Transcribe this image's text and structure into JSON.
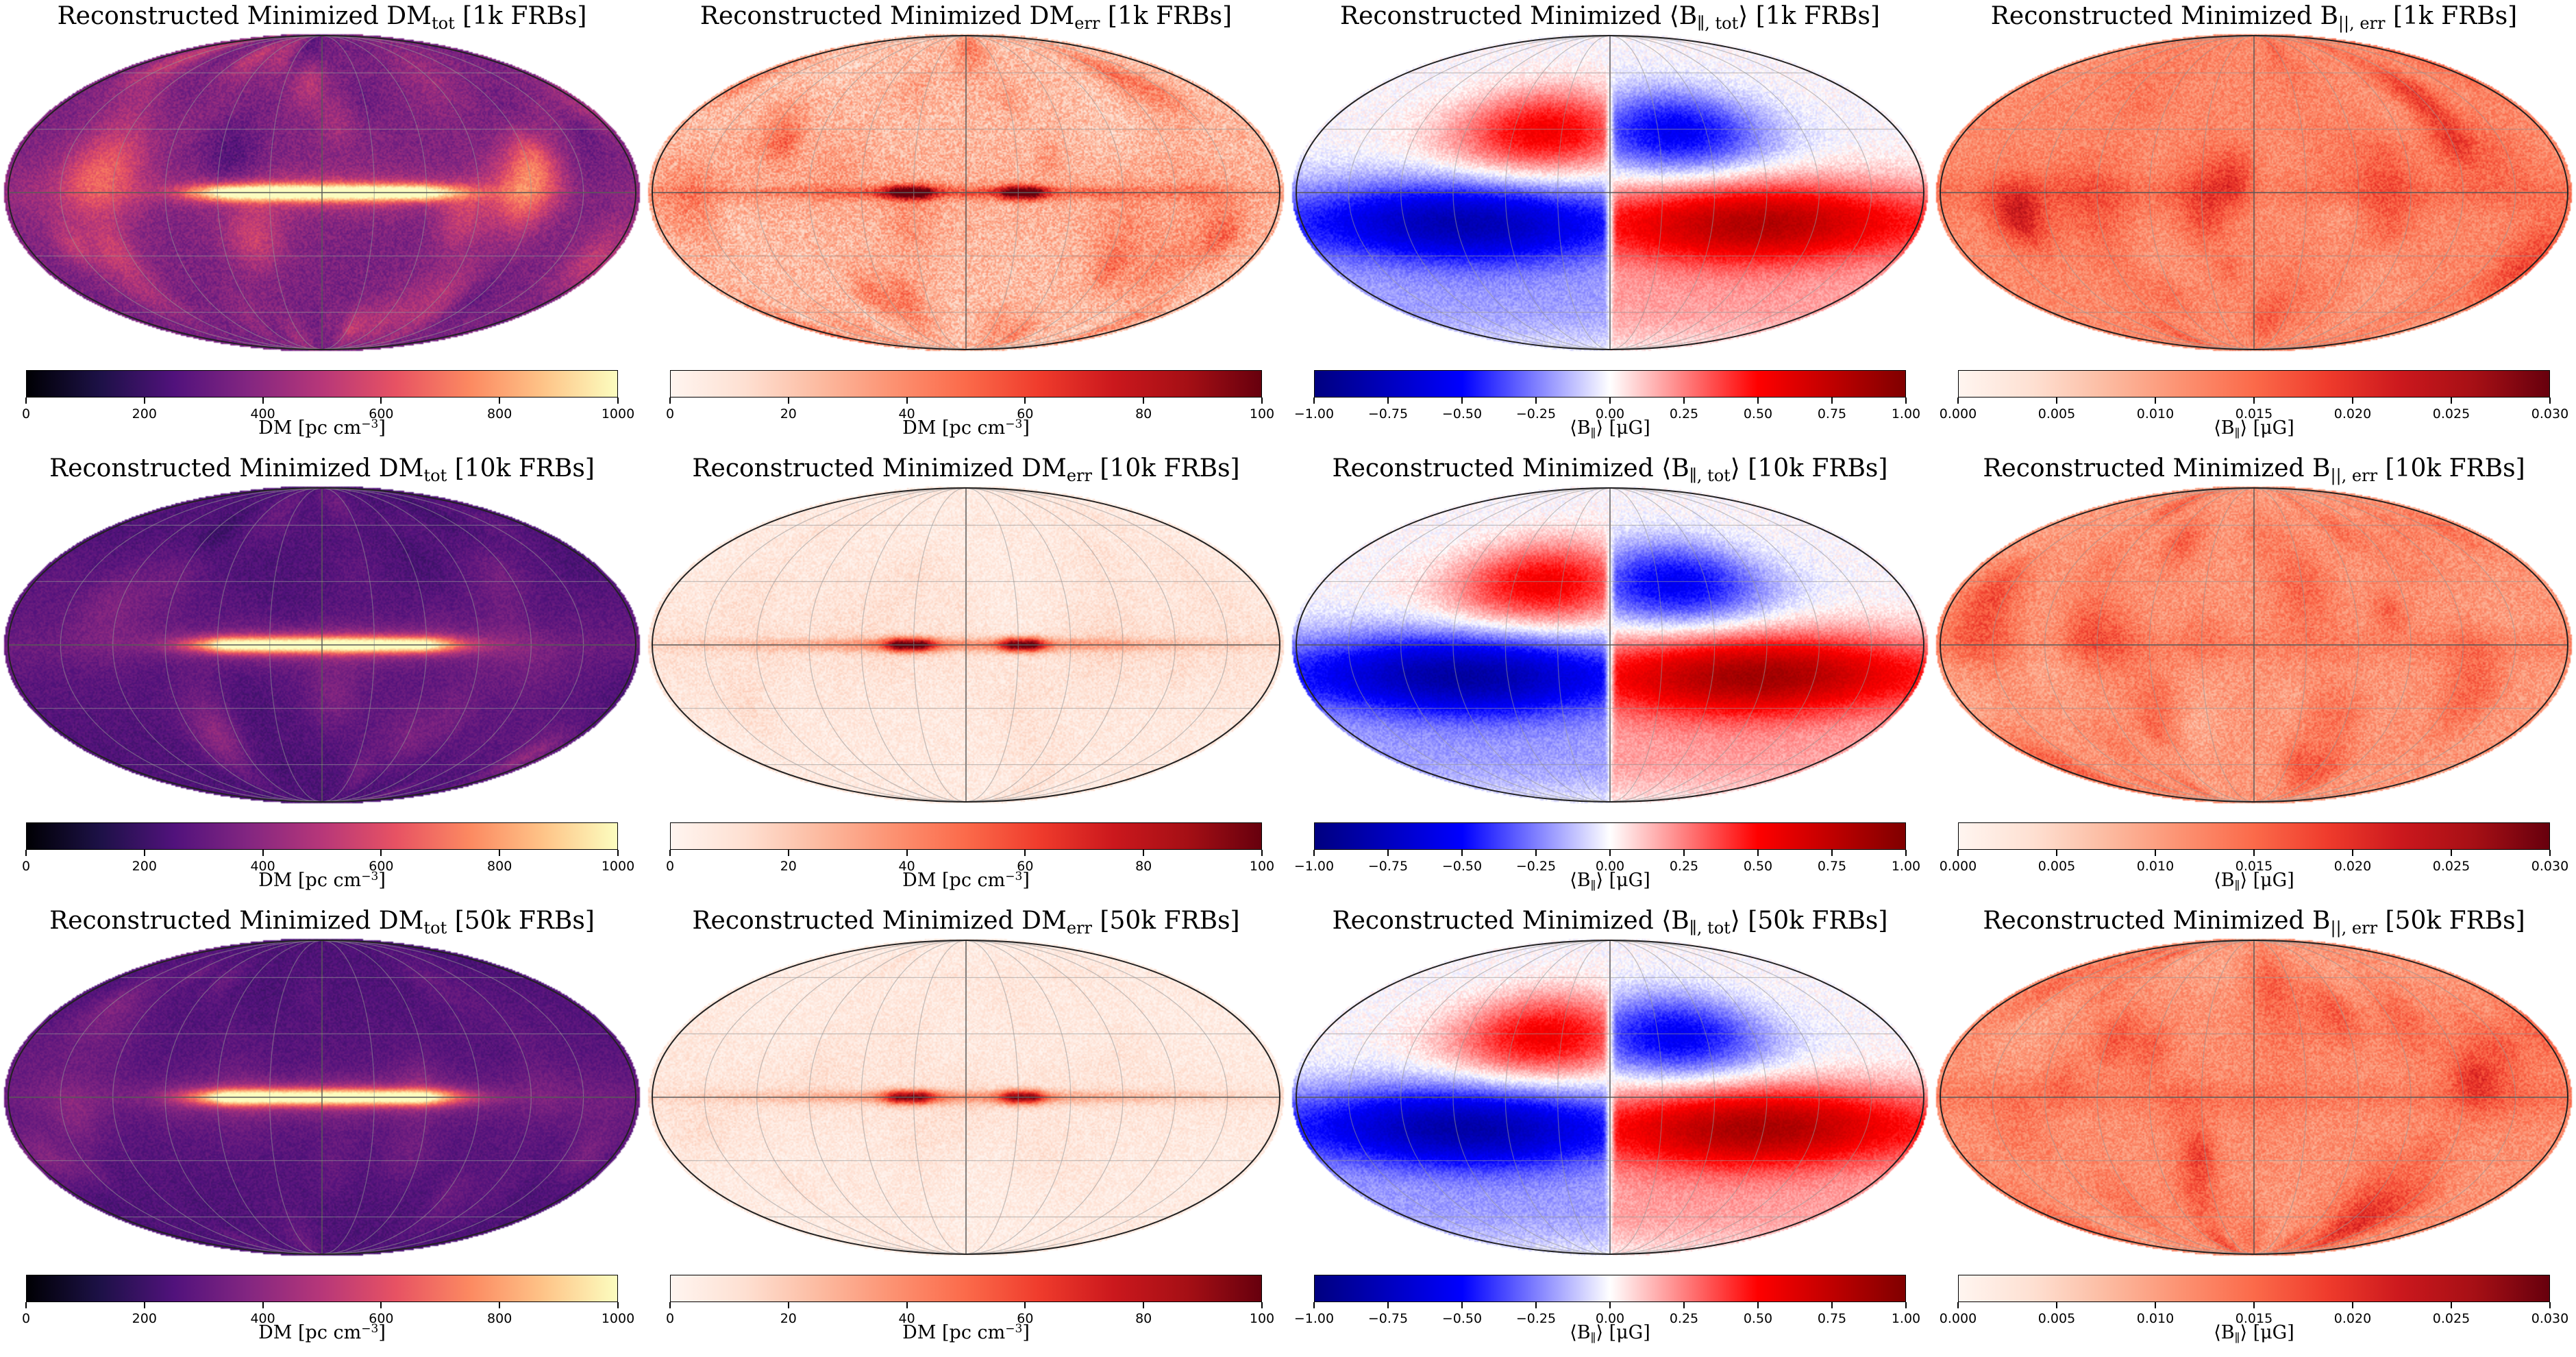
{
  "chart_data": {
    "type": "heatmap",
    "projection": "mollweide",
    "layout": "3 rows (1k, 10k, 50k FRBs) x 4 columns",
    "columns": [
      {
        "key": "dm_tot",
        "quantity": "Reconstructed Minimized DM_tot",
        "cmap": [
          "#000004",
          "#1d1147",
          "#51127c",
          "#832681",
          "#b73779",
          "#e75263",
          "#fc8961",
          "#fec488",
          "#fcfdbf"
        ],
        "range": [
          0,
          1000
        ],
        "ticks": [
          "0",
          "200",
          "400",
          "600",
          "800",
          "1000"
        ],
        "label_main": "DM [pc cm",
        "label_sup": "−3",
        "label_end": "]"
      },
      {
        "key": "dm_err",
        "quantity": "Reconstructed Minimized DM_err",
        "cmap": [
          "#fff5f0",
          "#fee0d2",
          "#fcbba1",
          "#fc9272",
          "#fb6a4a",
          "#ef3b2c",
          "#cb181d",
          "#a50f15",
          "#67000d"
        ],
        "range": [
          0,
          100
        ],
        "ticks": [
          "0",
          "20",
          "40",
          "60",
          "80",
          "100"
        ],
        "label_main": "DM [pc cm",
        "label_sup": "−3",
        "label_end": "]"
      },
      {
        "key": "b_tot",
        "quantity": "Reconstructed Minimized ⟨B∥,tot⟩",
        "cmap": [
          "#000080",
          "#0000ff",
          "#ffffff",
          "#ff0000",
          "#800000"
        ],
        "range": [
          -1.0,
          1.0
        ],
        "ticks": [
          "−1.00",
          "−0.75",
          "−0.50",
          "−0.25",
          "0.00",
          "0.25",
          "0.50",
          "0.75",
          "1.00"
        ],
        "label_main": "⟨B",
        "label_sub": "∥",
        "label_end": "⟩ [μG]"
      },
      {
        "key": "b_err",
        "quantity": "Reconstructed Minimized B||,err",
        "cmap": [
          "#fff5f0",
          "#fee0d2",
          "#fcbba1",
          "#fc9272",
          "#fb6a4a",
          "#ef3b2c",
          "#cb181d",
          "#a50f15",
          "#67000d"
        ],
        "range": [
          0.0,
          0.03
        ],
        "ticks": [
          "0.000",
          "0.005",
          "0.010",
          "0.015",
          "0.020",
          "0.025",
          "0.030"
        ],
        "label_main": "⟨B",
        "label_sub": "∥",
        "label_end": "⟩ [μG]"
      }
    ],
    "rows": [
      {
        "n_frb": "1k",
        "titles": [
          {
            "main": "Reconstructed Minimized DM",
            "sub": "tot",
            "tail": " [1k FRBs]"
          },
          {
            "main": "Reconstructed Minimized DM",
            "sub": "err",
            "tail": " [1k FRBs]"
          },
          {
            "main": "Reconstructed Minimized ⟨B",
            "sub": "∥, tot",
            "tail": "⟩ [1k FRBs]"
          },
          {
            "main": "Reconstructed Minimized B",
            "sub": "||, err",
            "tail": " [1k FRBs]"
          }
        ],
        "levels": {
          "dm_tot_bg": 0.34,
          "dm_tot_plane": 0.95,
          "dm_tot_blob": 0.14,
          "dm_err_bg": 0.24,
          "dm_err_plane": 0.9,
          "b_tot_amp": 0.88,
          "b_err_bg": 0.4
        }
      },
      {
        "n_frb": "10k",
        "titles": [
          {
            "main": "Reconstructed Minimized DM",
            "sub": "tot",
            "tail": " [10k FRBs]"
          },
          {
            "main": "Reconstructed Minimized DM",
            "sub": "err",
            "tail": " [10k FRBs]"
          },
          {
            "main": "Reconstructed Minimized ⟨B",
            "sub": "∥, tot",
            "tail": "⟩ [10k FRBs]"
          },
          {
            "main": "Reconstructed Minimized B",
            "sub": "||, err",
            "tail": " [10k FRBs]"
          }
        ],
        "levels": {
          "dm_tot_bg": 0.24,
          "dm_tot_plane": 0.97,
          "dm_tot_blob": 0.06,
          "dm_err_bg": 0.06,
          "dm_err_plane": 0.95,
          "b_tot_amp": 0.95,
          "b_err_bg": 0.36
        }
      },
      {
        "n_frb": "50k",
        "titles": [
          {
            "main": "Reconstructed Minimized DM",
            "sub": "tot",
            "tail": " [50k FRBs]"
          },
          {
            "main": "Reconstructed Minimized DM",
            "sub": "err",
            "tail": " [50k FRBs]"
          },
          {
            "main": "Reconstructed Minimized ⟨B",
            "sub": "∥, tot",
            "tail": "⟩ [50k FRBs]"
          },
          {
            "main": "Reconstructed Minimized B",
            "sub": "||, err",
            "tail": " [50k FRBs]"
          }
        ],
        "levels": {
          "dm_tot_bg": 0.24,
          "dm_tot_plane": 0.97,
          "dm_tot_blob": 0.05,
          "dm_err_bg": 0.05,
          "dm_err_plane": 0.85,
          "b_tot_amp": 0.92,
          "b_err_bg": 0.38
        }
      }
    ]
  }
}
